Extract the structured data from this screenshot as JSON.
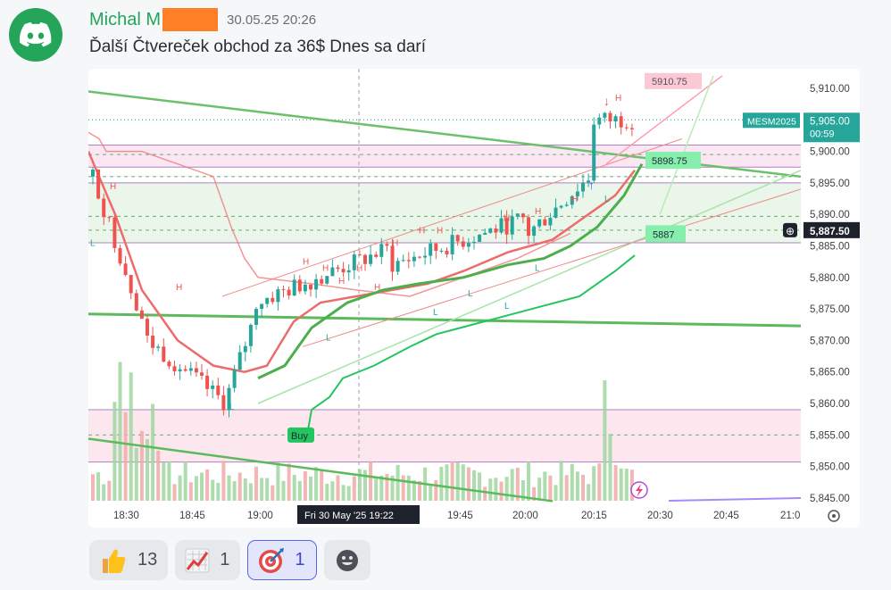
{
  "message": {
    "username": "Michal M",
    "timestamp": "30.05.25 20:26",
    "text": "Ďalší Čtvereček obchod za 36$ Dnes sa darí"
  },
  "chart_data": {
    "type": "candlestick",
    "symbol": "MESM2025",
    "last_price": "5,905.00",
    "countdown": "00:59",
    "crosshair_price": "5,887.50",
    "crosshair_time": "Fri 30 May '25   19:22",
    "y_ticks": [
      "5,910.00",
      "5,905.00",
      "5,900.00",
      "5,895.00",
      "5,890.00",
      "5,885.00",
      "5,880.00",
      "5,875.00",
      "5,870.00",
      "5,865.00",
      "5,860.00",
      "5,855.00",
      "5,850.00",
      "5,845.00"
    ],
    "x_ticks": [
      "18:30",
      "18:45",
      "19:00",
      "19:45",
      "20:00",
      "20:15",
      "20:30",
      "20:45",
      "21:0"
    ],
    "labels": {
      "top_tag": "5910.75",
      "tag_upper": "5898.75",
      "tag_lower": "5887",
      "buy": "Buy"
    },
    "ylim": [
      5844,
      5911
    ]
  },
  "reactions": [
    {
      "emoji": "thumbs-up",
      "count": "13"
    },
    {
      "emoji": "chart-increasing",
      "count": "1"
    },
    {
      "emoji": "direct-hit",
      "count": "1"
    }
  ],
  "colors": {
    "up": "#26a69a",
    "down": "#ef5350",
    "accent": "#23a55a",
    "brand": "#5865f2"
  }
}
